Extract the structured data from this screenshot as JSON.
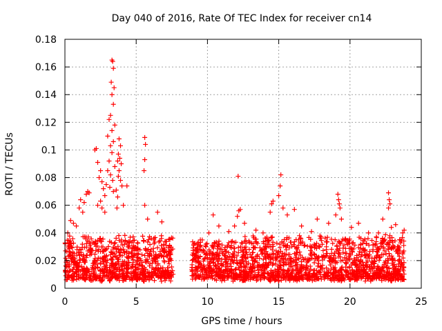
{
  "chart_data": {
    "type": "scatter",
    "title": "Day 040 of 2016, Rate Of TEC Index for receiver cn14",
    "xlabel": "GPS time / hours",
    "ylabel": "ROTI / TECUs",
    "xlim": [
      0,
      25
    ],
    "ylim": [
      0,
      0.18
    ],
    "x_ticks": [
      "0",
      "5",
      "10",
      "15",
      "20",
      "25"
    ],
    "y_ticks": [
      "0",
      "0.02",
      "0.04",
      "0.06",
      "0.08",
      "0.1",
      "0.12",
      "0.14",
      "0.16",
      "0.18"
    ],
    "grid": true,
    "marker": "plus",
    "color": "#ff0000",
    "series": [
      {
        "name": "ROTI",
        "points": [
          [
            3.3,
            0.165
          ],
          [
            3.35,
            0.164
          ],
          [
            3.4,
            0.159
          ],
          [
            3.25,
            0.149
          ],
          [
            3.45,
            0.145
          ],
          [
            3.3,
            0.14
          ],
          [
            3.4,
            0.133
          ],
          [
            3.2,
            0.125
          ],
          [
            3.1,
            0.122
          ],
          [
            3.5,
            0.118
          ],
          [
            3.3,
            0.114
          ],
          [
            3.0,
            0.11
          ],
          [
            3.4,
            0.106
          ],
          [
            3.2,
            0.103
          ],
          [
            3.3,
            0.098
          ],
          [
            3.1,
            0.092
          ],
          [
            3.5,
            0.088
          ],
          [
            3.0,
            0.085
          ],
          [
            3.2,
            0.082
          ],
          [
            3.35,
            0.078
          ],
          [
            2.9,
            0.075
          ],
          [
            3.15,
            0.073
          ],
          [
            3.4,
            0.07
          ],
          [
            2.2,
            0.101
          ],
          [
            2.1,
            0.1
          ],
          [
            2.3,
            0.091
          ],
          [
            2.5,
            0.085
          ],
          [
            2.4,
            0.08
          ],
          [
            2.6,
            0.077
          ],
          [
            2.7,
            0.072
          ],
          [
            2.8,
            0.067
          ],
          [
            2.5,
            0.063
          ],
          [
            2.3,
            0.06
          ],
          [
            2.6,
            0.058
          ],
          [
            2.8,
            0.055
          ],
          [
            3.8,
            0.108
          ],
          [
            3.9,
            0.103
          ],
          [
            3.75,
            0.097
          ],
          [
            3.85,
            0.094
          ],
          [
            3.7,
            0.092
          ],
          [
            3.95,
            0.09
          ],
          [
            3.8,
            0.085
          ],
          [
            3.75,
            0.081
          ],
          [
            3.9,
            0.078
          ],
          [
            4.0,
            0.074
          ],
          [
            4.35,
            0.074
          ],
          [
            3.6,
            0.071
          ],
          [
            3.7,
            0.066
          ],
          [
            4.1,
            0.06
          ],
          [
            3.65,
            0.058
          ],
          [
            5.6,
            0.109
          ],
          [
            5.65,
            0.104
          ],
          [
            5.6,
            0.093
          ],
          [
            5.55,
            0.085
          ],
          [
            5.6,
            0.06
          ],
          [
            5.8,
            0.05
          ],
          [
            6.5,
            0.055
          ],
          [
            6.8,
            0.048
          ],
          [
            1.6,
            0.07
          ],
          [
            1.5,
            0.068
          ],
          [
            1.7,
            0.069
          ],
          [
            1.35,
            0.062
          ],
          [
            1.1,
            0.064
          ],
          [
            1.0,
            0.058
          ],
          [
            1.25,
            0.055
          ],
          [
            0.4,
            0.049
          ],
          [
            0.6,
            0.047
          ],
          [
            0.8,
            0.045
          ],
          [
            0.2,
            0.04
          ],
          [
            12.15,
            0.081
          ],
          [
            12.3,
            0.057
          ],
          [
            12.2,
            0.056
          ],
          [
            12.1,
            0.052
          ],
          [
            12.6,
            0.047
          ],
          [
            11.9,
            0.045
          ],
          [
            15.15,
            0.082
          ],
          [
            15.1,
            0.074
          ],
          [
            15.0,
            0.067
          ],
          [
            14.6,
            0.063
          ],
          [
            14.5,
            0.061
          ],
          [
            14.4,
            0.055
          ],
          [
            15.3,
            0.058
          ],
          [
            15.6,
            0.053
          ],
          [
            16.1,
            0.057
          ],
          [
            17.7,
            0.05
          ],
          [
            18.5,
            0.047
          ],
          [
            19.0,
            0.053
          ],
          [
            19.25,
            0.061
          ],
          [
            19.3,
            0.058
          ],
          [
            19.2,
            0.064
          ],
          [
            19.15,
            0.068
          ],
          [
            19.4,
            0.05
          ],
          [
            20.1,
            0.044
          ],
          [
            20.6,
            0.047
          ],
          [
            21.3,
            0.04
          ],
          [
            22.7,
            0.069
          ],
          [
            22.75,
            0.064
          ],
          [
            22.8,
            0.061
          ],
          [
            22.7,
            0.058
          ],
          [
            22.9,
            0.044
          ],
          [
            23.2,
            0.046
          ],
          [
            22.3,
            0.05
          ],
          [
            22.0,
            0.04
          ],
          [
            23.8,
            0.042
          ],
          [
            23.7,
            0.04
          ],
          [
            10.4,
            0.053
          ],
          [
            10.8,
            0.045
          ],
          [
            11.5,
            0.041
          ],
          [
            10.1,
            0.04
          ],
          [
            9.5,
            0.035
          ],
          [
            13.4,
            0.042
          ],
          [
            13.9,
            0.04
          ],
          [
            16.6,
            0.045
          ],
          [
            17.3,
            0.041
          ]
        ]
      }
    ],
    "dense_segments": [
      {
        "x_start": 0.0,
        "x_end": 7.6,
        "y_base": 0.005,
        "y_typical_max": 0.035
      },
      {
        "x_start": 8.9,
        "x_end": 12.6,
        "y_base": 0.005,
        "y_typical_max": 0.032
      },
      {
        "x_start": 12.6,
        "x_end": 23.8,
        "y_base": 0.005,
        "y_typical_max": 0.035
      }
    ]
  }
}
